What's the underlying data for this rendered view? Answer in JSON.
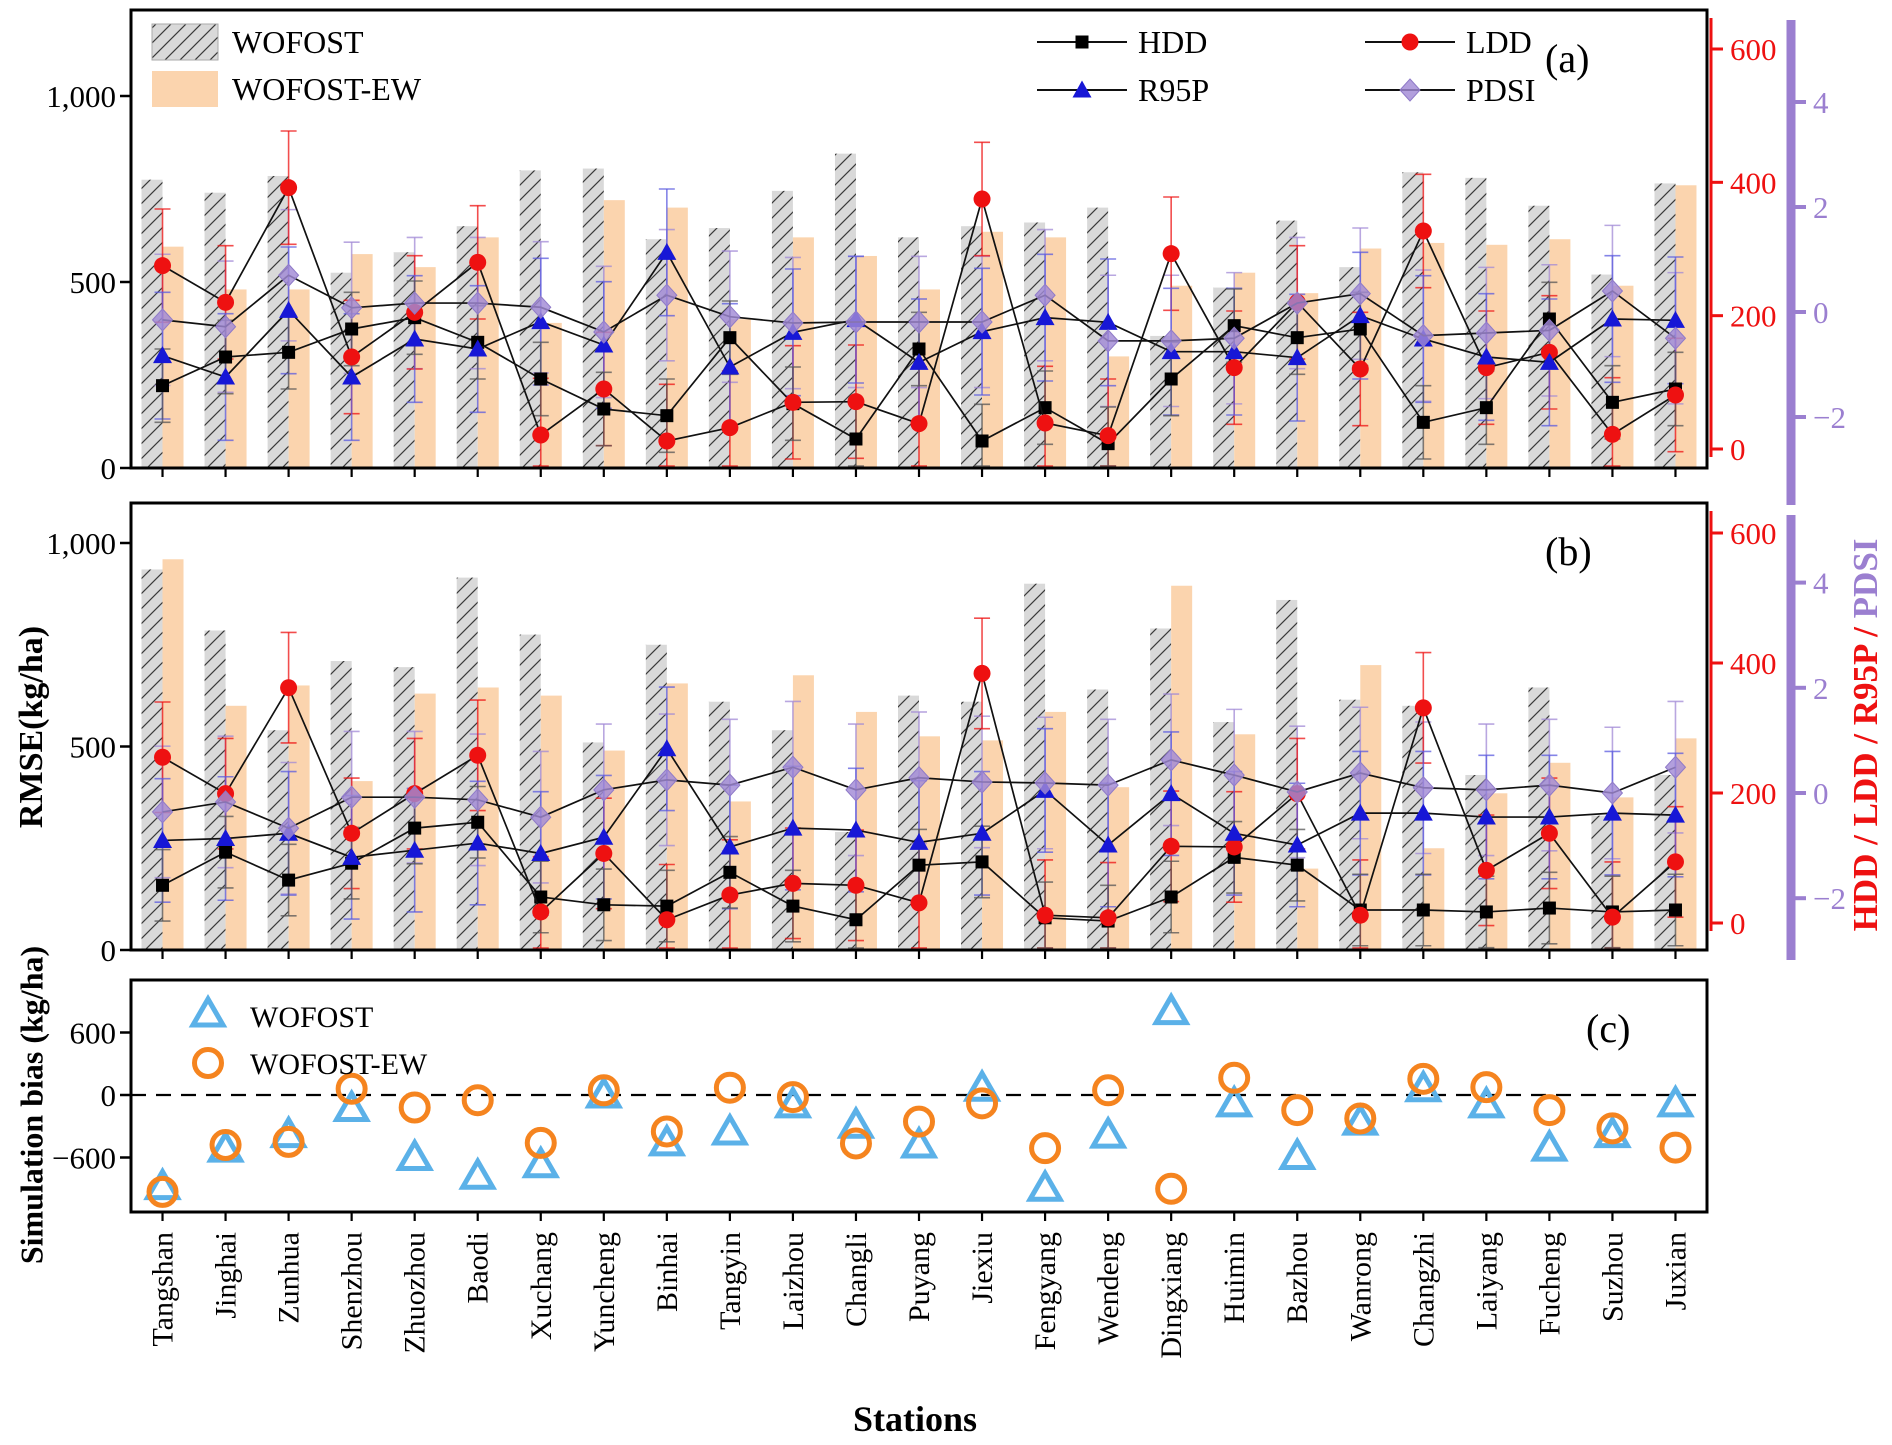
{
  "labels": {
    "rmse": "RMSE(kg/ha)",
    "bias": "Simulation bias (kg/ha)",
    "stations_title": "Stations",
    "right_red": "HDD / LDD / R95P /",
    "right_purple": " PDSI"
  },
  "stations": [
    "Tangshan",
    "Jinghai",
    "Zunhua",
    "Shenzhou",
    "Zhuozhou",
    "Baodi",
    "Xuchang",
    "Yuncheng",
    "Binhai",
    "Tangyin",
    "Laizhou",
    "Changli",
    "Puyang",
    "Jiexiu",
    "Fengyang",
    "Wendeng",
    "Dingxiang",
    "Huimin",
    "Bazhou",
    "Wanrong",
    "Changzhi",
    "Laiyang",
    "Fucheng",
    "Suzhou",
    "Juxian"
  ],
  "colors": {
    "wofost_bar": "#d9d9d9",
    "wofost_hatch": "#3a3a3a",
    "wofost_ew_bar": "#fbd4ae",
    "hdd": "#000000",
    "ldd": "#ee1111",
    "r95p": "#1717d6",
    "pdsi": "#a18ad6",
    "pdsi_edge": "#8f7ac8",
    "red_axis": "#ee1111",
    "purple_axis": "#9b7fd0",
    "bias_wofost": "#5bb1e8",
    "bias_wofost_ew": "#f5841f",
    "line": "#111111"
  },
  "bar_legend": [
    "WOFOST",
    "WOFOST-EW"
  ],
  "series_legend": [
    "HDD",
    "LDD",
    "R95P",
    "PDSI"
  ],
  "scatter_legend": [
    "WOFOST",
    "WOFOST-EW"
  ],
  "chart_data": [
    {
      "panel": "a",
      "type": "bar+line",
      "tag": "(a)",
      "ylabel": "RMSE(kg/ha)",
      "left_ticks": [
        {
          "v": 0,
          "label": "0"
        },
        {
          "v": 500,
          "label": "500"
        },
        {
          "v": 1000,
          "label": "1,000"
        }
      ],
      "red_ticks": [
        0,
        200,
        400,
        600
      ],
      "purple_ticks": [
        -2,
        0,
        2,
        4
      ],
      "bars": {
        "WOFOST": [
          775,
          740,
          785,
          525,
          580,
          650,
          800,
          805,
          615,
          645,
          745,
          845,
          620,
          650,
          660,
          700,
          355,
          485,
          665,
          540,
          795,
          780,
          705,
          520,
          765
        ],
        "WOFOST_EW": [
          595,
          480,
          480,
          575,
          540,
          620,
          390,
          720,
          700,
          400,
          620,
          570,
          480,
          635,
          620,
          300,
          490,
          525,
          470,
          590,
          605,
          600,
          615,
          490,
          760
        ]
      },
      "lines": {
        "HDD": [
          95,
          138,
          145,
          180,
          197,
          160,
          105,
          60,
          50,
          167,
          68,
          15,
          150,
          12,
          62,
          8,
          105,
          185,
          167,
          180,
          40,
          62,
          195,
          70,
          90
        ],
        "LDD": [
          275,
          220,
          392,
          138,
          205,
          280,
          21,
          90,
          12,
          32,
          70,
          71,
          38,
          375,
          39,
          20,
          293,
          122,
          220,
          120,
          327,
          122,
          145,
          22,
          81
        ],
        "R95P": [
          140,
          108,
          208,
          108,
          165,
          150,
          191,
          156,
          295,
          123,
          175,
          194,
          130,
          176,
          197,
          190,
          146,
          146,
          137,
          200,
          165,
          138,
          130,
          195,
          193
        ],
        "PDSI": [
          -0.15,
          -0.28,
          0.7,
          0.08,
          0.17,
          0.17,
          0.09,
          -0.38,
          0.32,
          -0.09,
          -0.21,
          -0.19,
          -0.19,
          -0.19,
          0.32,
          -0.55,
          -0.55,
          -0.5,
          0.17,
          0.35,
          -0.45,
          -0.4,
          -0.35,
          0.4,
          -0.5
        ]
      },
      "errors": {
        "HDD": 55,
        "LDD": 85,
        "R95P": 95,
        "PDSI": 1.25
      }
    },
    {
      "panel": "b",
      "type": "bar+line",
      "tag": "(b)",
      "ylabel": "RMSE(kg/ha)",
      "left_ticks": [
        {
          "v": 0,
          "label": "0"
        },
        {
          "v": 500,
          "label": "500"
        },
        {
          "v": 1000,
          "label": "1,000"
        }
      ],
      "red_ticks": [
        0,
        200,
        400,
        600
      ],
      "purple_ticks": [
        -2,
        0,
        2,
        4
      ],
      "bars": {
        "WOFOST": [
          935,
          785,
          540,
          710,
          695,
          915,
          775,
          510,
          750,
          610,
          540,
          290,
          625,
          610,
          900,
          640,
          790,
          560,
          860,
          615,
          600,
          430,
          645,
          330,
          430
        ],
        "WOFOST_EW": [
          960,
          600,
          650,
          415,
          630,
          645,
          625,
          490,
          655,
          365,
          675,
          585,
          525,
          515,
          585,
          400,
          895,
          530,
          200,
          700,
          250,
          385,
          460,
          375,
          520
        ]
      },
      "lines": {
        "HDD": [
          58,
          109,
          66,
          92,
          146,
          155,
          40,
          28,
          26,
          78,
          26,
          5,
          89,
          94,
          8,
          3,
          40,
          101,
          89,
          20,
          20,
          17,
          23,
          17,
          20
        ],
        "LDD": [
          255,
          199,
          362,
          138,
          199,
          258,
          17,
          107,
          5,
          43,
          61,
          58,
          31,
          384,
          12,
          8,
          118,
          117,
          199,
          12,
          331,
          81,
          138,
          9,
          94
        ],
        "R95P": [
          127,
          130,
          138,
          101,
          112,
          123,
          107,
          132,
          268,
          117,
          146,
          143,
          124,
          138,
          204,
          120,
          199,
          138,
          120,
          169,
          169,
          163,
          163,
          169,
          166
        ],
        "PDSI": [
          -0.36,
          -0.17,
          -0.67,
          -0.08,
          -0.08,
          -0.13,
          -0.46,
          0.06,
          0.25,
          0.15,
          0.49,
          0.06,
          0.29,
          0.21,
          0.19,
          0.15,
          0.63,
          0.34,
          0.02,
          0.38,
          0.1,
          0.06,
          0.15,
          0,
          0.49
        ]
      },
      "errors": {
        "HDD": 55,
        "LDD": 85,
        "R95P": 95,
        "PDSI": 1.25
      }
    },
    {
      "panel": "c",
      "type": "scatter",
      "tag": "(c)",
      "ylabel": "Simulation bias (kg/ha)",
      "left_ticks": [
        {
          "v": -600,
          "label": "-600"
        },
        {
          "v": 0,
          "label": "0"
        },
        {
          "v": 600,
          "label": "600"
        }
      ],
      "zero_line": true,
      "series": {
        "WOFOST": [
          -880,
          -520,
          -380,
          -130,
          -600,
          -780,
          -670,
          0,
          -460,
          -355,
          -95,
          -290,
          -480,
          65,
          -895,
          -385,
          800,
          -85,
          -590,
          -260,
          60,
          -95,
          -510,
          -380,
          -85
        ],
        "WOFOST_EW": [
          -930,
          -480,
          -450,
          60,
          -120,
          -50,
          -460,
          45,
          -350,
          70,
          -20,
          -465,
          -255,
          -80,
          -510,
          45,
          -900,
          165,
          -145,
          -225,
          155,
          75,
          -145,
          -320,
          -505
        ]
      }
    }
  ]
}
